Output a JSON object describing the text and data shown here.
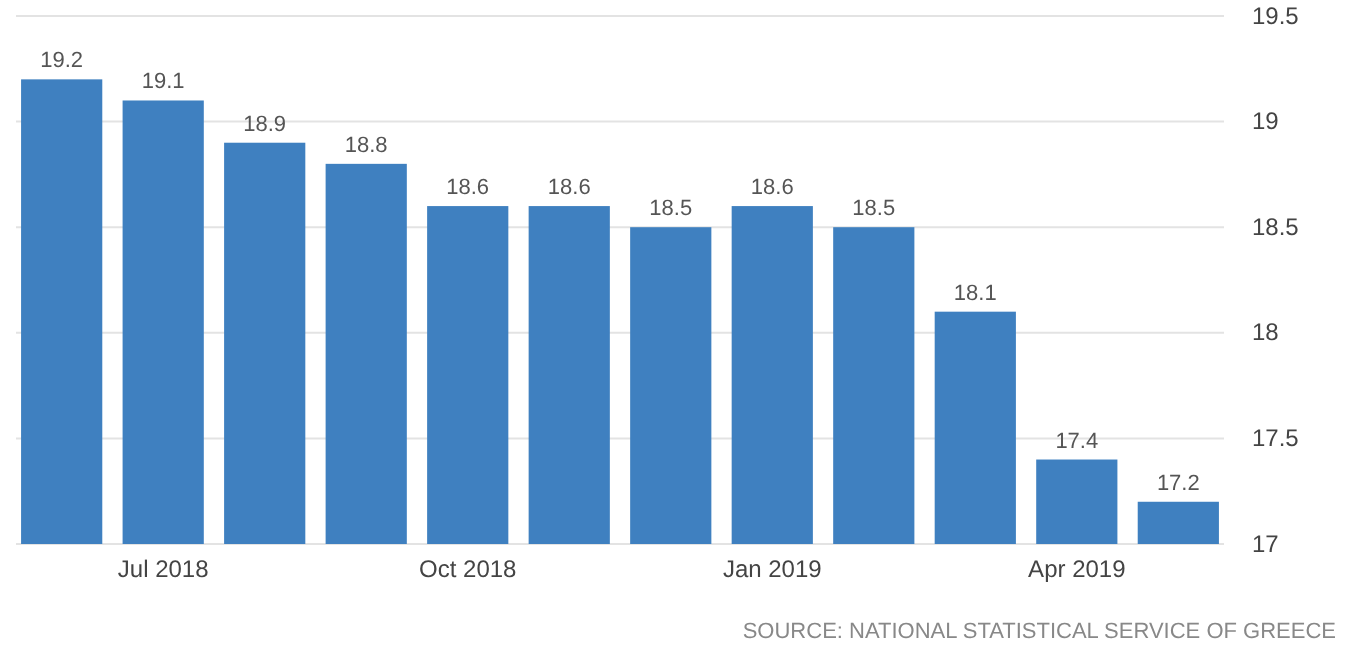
{
  "chart_data": {
    "type": "bar",
    "categories": [
      null,
      "Jul 2018",
      null,
      null,
      "Oct 2018",
      null,
      null,
      "Jan 2019",
      null,
      null,
      "Apr 2019",
      null
    ],
    "values": [
      19.2,
      19.1,
      18.9,
      18.8,
      18.6,
      18.6,
      18.5,
      18.6,
      18.5,
      18.1,
      17.4,
      17.2
    ],
    "color": "#3f80c0",
    "ylim": [
      17,
      19.5
    ],
    "yticks": [
      17,
      17.5,
      18,
      18.5,
      19,
      19.5
    ],
    "grid": "y",
    "data_labels": true,
    "annotations": [
      "SOURCE: NATIONAL STATISTICAL SERVICE OF GREECE"
    ]
  }
}
